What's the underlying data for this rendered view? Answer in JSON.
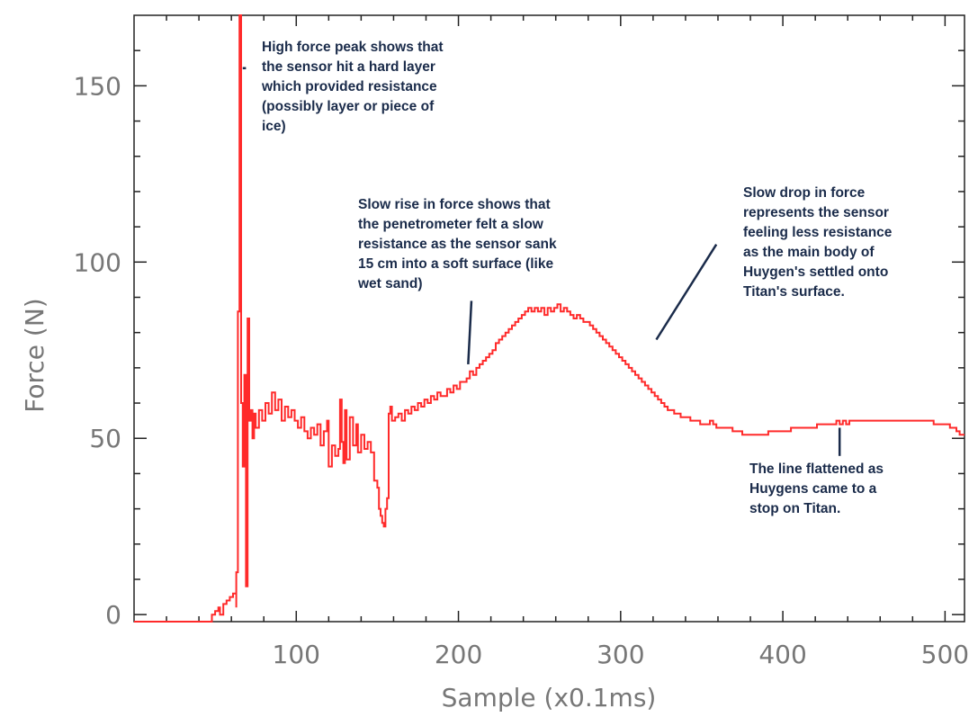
{
  "colors": {
    "series": "#ff2a2a",
    "axis": "#222222",
    "tick_text": "#777777",
    "annotation_text": "#1a2b4a",
    "pointer": "#1a2b4a"
  },
  "chart_data": {
    "type": "line",
    "xlabel": "Sample (x0.1ms)",
    "ylabel": "Force (N)",
    "xlim": [
      0,
      512
    ],
    "ylim": [
      -2,
      170
    ],
    "x_ticks": [
      100,
      200,
      300,
      400,
      500
    ],
    "y_ticks": [
      0,
      50,
      100,
      150
    ],
    "grid": false,
    "series": [
      {
        "style": "step",
        "points": [
          [
            0,
            -2
          ],
          [
            46,
            -2
          ],
          [
            48,
            0
          ],
          [
            50,
            1
          ],
          [
            52,
            2
          ],
          [
            53,
            0
          ],
          [
            55,
            3
          ],
          [
            57,
            4
          ],
          [
            59,
            5
          ],
          [
            61,
            6
          ],
          [
            63,
            2
          ],
          [
            63,
            12
          ],
          [
            64,
            86
          ],
          [
            65,
            170
          ],
          [
            66,
            60
          ],
          [
            67,
            42
          ],
          [
            68,
            68
          ],
          [
            69,
            8
          ],
          [
            70,
            84
          ],
          [
            71,
            55
          ],
          [
            72,
            58
          ],
          [
            73,
            50
          ],
          [
            74,
            57
          ],
          [
            75,
            53
          ],
          [
            77,
            58
          ],
          [
            79,
            55
          ],
          [
            81,
            60
          ],
          [
            83,
            57
          ],
          [
            85,
            63
          ],
          [
            87,
            58
          ],
          [
            89,
            61
          ],
          [
            91,
            55
          ],
          [
            93,
            59
          ],
          [
            95,
            56
          ],
          [
            97,
            58
          ],
          [
            99,
            55
          ],
          [
            101,
            53
          ],
          [
            103,
            56
          ],
          [
            105,
            52
          ],
          [
            107,
            50
          ],
          [
            109,
            53
          ],
          [
            111,
            51
          ],
          [
            113,
            54
          ],
          [
            115,
            48
          ],
          [
            117,
            52
          ],
          [
            119,
            55
          ],
          [
            120,
            42
          ],
          [
            122,
            48
          ],
          [
            124,
            45
          ],
          [
            126,
            47
          ],
          [
            127,
            61
          ],
          [
            128,
            49
          ],
          [
            129,
            43
          ],
          [
            130,
            58
          ],
          [
            131,
            44
          ],
          [
            133,
            56
          ],
          [
            135,
            48
          ],
          [
            137,
            54
          ],
          [
            138,
            46
          ],
          [
            140,
            51
          ],
          [
            142,
            47
          ],
          [
            144,
            49
          ],
          [
            146,
            46
          ],
          [
            148,
            38
          ],
          [
            150,
            36
          ],
          [
            151,
            30
          ],
          [
            152,
            28
          ],
          [
            153,
            26
          ],
          [
            154,
            25
          ],
          [
            155,
            30
          ],
          [
            156,
            33
          ],
          [
            157,
            57
          ],
          [
            158,
            59
          ],
          [
            159,
            55
          ],
          [
            161,
            56
          ],
          [
            163,
            57
          ],
          [
            165,
            55
          ],
          [
            167,
            58
          ],
          [
            169,
            57
          ],
          [
            171,
            59
          ],
          [
            173,
            58
          ],
          [
            175,
            60
          ],
          [
            177,
            59
          ],
          [
            179,
            61
          ],
          [
            181,
            60
          ],
          [
            183,
            62
          ],
          [
            185,
            61
          ],
          [
            187,
            63
          ],
          [
            189,
            62
          ],
          [
            191,
            62
          ],
          [
            193,
            64
          ],
          [
            195,
            63
          ],
          [
            197,
            65
          ],
          [
            199,
            64
          ],
          [
            201,
            66
          ],
          [
            203,
            66
          ],
          [
            205,
            67
          ],
          [
            207,
            69
          ],
          [
            209,
            68
          ],
          [
            211,
            70
          ],
          [
            213,
            71
          ],
          [
            215,
            72
          ],
          [
            217,
            73
          ],
          [
            219,
            74
          ],
          [
            221,
            75
          ],
          [
            223,
            77
          ],
          [
            225,
            78
          ],
          [
            227,
            79
          ],
          [
            229,
            80
          ],
          [
            231,
            81
          ],
          [
            233,
            82
          ],
          [
            235,
            83
          ],
          [
            237,
            84
          ],
          [
            239,
            85
          ],
          [
            241,
            86
          ],
          [
            243,
            87
          ],
          [
            245,
            86
          ],
          [
            247,
            87
          ],
          [
            249,
            86
          ],
          [
            251,
            87
          ],
          [
            253,
            85
          ],
          [
            255,
            87
          ],
          [
            257,
            86
          ],
          [
            259,
            87
          ],
          [
            261,
            88
          ],
          [
            263,
            86
          ],
          [
            265,
            87
          ],
          [
            267,
            86
          ],
          [
            269,
            85
          ],
          [
            271,
            84
          ],
          [
            273,
            85
          ],
          [
            275,
            84
          ],
          [
            277,
            83
          ],
          [
            279,
            83
          ],
          [
            281,
            82
          ],
          [
            283,
            81
          ],
          [
            285,
            80
          ],
          [
            287,
            79
          ],
          [
            289,
            78
          ],
          [
            291,
            77
          ],
          [
            293,
            76
          ],
          [
            295,
            75
          ],
          [
            297,
            74
          ],
          [
            299,
            73
          ],
          [
            301,
            72
          ],
          [
            303,
            71
          ],
          [
            305,
            70
          ],
          [
            307,
            69
          ],
          [
            309,
            68
          ],
          [
            311,
            67
          ],
          [
            313,
            66
          ],
          [
            315,
            65
          ],
          [
            317,
            64
          ],
          [
            319,
            63
          ],
          [
            321,
            62
          ],
          [
            323,
            61
          ],
          [
            325,
            60
          ],
          [
            327,
            59
          ],
          [
            329,
            58
          ],
          [
            331,
            58
          ],
          [
            333,
            57
          ],
          [
            335,
            57
          ],
          [
            337,
            56
          ],
          [
            339,
            56
          ],
          [
            341,
            56
          ],
          [
            343,
            55
          ],
          [
            345,
            55
          ],
          [
            347,
            55
          ],
          [
            349,
            54
          ],
          [
            351,
            54
          ],
          [
            353,
            54
          ],
          [
            355,
            55
          ],
          [
            357,
            54
          ],
          [
            359,
            53
          ],
          [
            361,
            53
          ],
          [
            363,
            53
          ],
          [
            365,
            53
          ],
          [
            367,
            53
          ],
          [
            369,
            52
          ],
          [
            371,
            52
          ],
          [
            373,
            52
          ],
          [
            375,
            51
          ],
          [
            377,
            51
          ],
          [
            379,
            51
          ],
          [
            381,
            51
          ],
          [
            383,
            51
          ],
          [
            385,
            51
          ],
          [
            387,
            51
          ],
          [
            389,
            51
          ],
          [
            391,
            52
          ],
          [
            393,
            52
          ],
          [
            395,
            52
          ],
          [
            397,
            52
          ],
          [
            399,
            52
          ],
          [
            401,
            52
          ],
          [
            403,
            52
          ],
          [
            405,
            53
          ],
          [
            407,
            53
          ],
          [
            409,
            53
          ],
          [
            411,
            53
          ],
          [
            413,
            53
          ],
          [
            415,
            53
          ],
          [
            417,
            53
          ],
          [
            419,
            53
          ],
          [
            421,
            54
          ],
          [
            423,
            54
          ],
          [
            425,
            54
          ],
          [
            427,
            54
          ],
          [
            429,
            54
          ],
          [
            431,
            54
          ],
          [
            433,
            55
          ],
          [
            435,
            54
          ],
          [
            437,
            55
          ],
          [
            439,
            54
          ],
          [
            441,
            55
          ],
          [
            443,
            55
          ],
          [
            445,
            55
          ],
          [
            447,
            55
          ],
          [
            449,
            55
          ],
          [
            451,
            55
          ],
          [
            453,
            55
          ],
          [
            455,
            55
          ],
          [
            457,
            55
          ],
          [
            459,
            55
          ],
          [
            461,
            55
          ],
          [
            463,
            55
          ],
          [
            465,
            55
          ],
          [
            467,
            55
          ],
          [
            469,
            55
          ],
          [
            471,
            55
          ],
          [
            473,
            55
          ],
          [
            475,
            55
          ],
          [
            477,
            55
          ],
          [
            479,
            55
          ],
          [
            481,
            55
          ],
          [
            483,
            55
          ],
          [
            485,
            55
          ],
          [
            487,
            55
          ],
          [
            489,
            55
          ],
          [
            491,
            55
          ],
          [
            493,
            54
          ],
          [
            495,
            54
          ],
          [
            497,
            54
          ],
          [
            499,
            54
          ],
          [
            501,
            54
          ],
          [
            503,
            53
          ],
          [
            505,
            53
          ],
          [
            507,
            52
          ],
          [
            509,
            51
          ],
          [
            511,
            51
          ],
          [
            512,
            51
          ]
        ]
      }
    ],
    "annotations": [
      {
        "id": "peak",
        "text": "High force peak shows that\nthe sensor hit a hard layer\nwhich provided resistance\n(possibly layer or piece of\nice)",
        "pointer": [
          [
            67,
            155
          ],
          [
            69,
            155
          ]
        ]
      },
      {
        "id": "rise",
        "text": "Slow rise in force shows that\nthe penetrometer felt a slow\nresistance as the sensor sank\n15 cm into a soft surface (like\nwet sand)",
        "pointer": [
          [
            208,
            89
          ],
          [
            206,
            71
          ]
        ]
      },
      {
        "id": "drop",
        "text": "Slow drop in force\nrepresents the sensor\nfeeling less resistance\nas the main body of\nHuygen's settled onto\nTitan's surface.",
        "pointer": [
          [
            359,
            105
          ],
          [
            322,
            78
          ]
        ]
      },
      {
        "id": "flat",
        "text": "The line flattened as\nHuygens came to a\nstop on Titan.",
        "pointer": [
          [
            435,
            53
          ],
          [
            435,
            45
          ]
        ]
      }
    ]
  }
}
